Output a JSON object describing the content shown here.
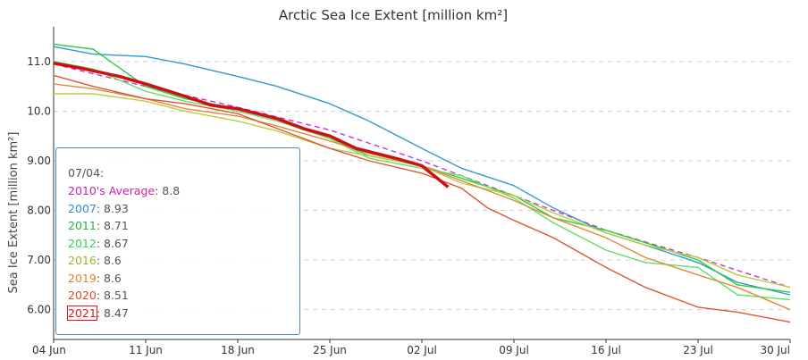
{
  "chart_data": {
    "type": "line",
    "title": "Arctic Sea Ice Extent [million km²]",
    "ylabel": "Sea Ice Extent [million km²]",
    "xlabel": "",
    "x_axis": {
      "start": "04 Jun",
      "end": "30 Jul",
      "tick_labels": [
        "04 Jun",
        "11 Jun",
        "18 Jun",
        "25 Jun",
        "02 Jul",
        "09 Jul",
        "16 Jul",
        "23 Jul",
        "30 Jul"
      ]
    },
    "ylim": [
      5.4,
      11.7
    ],
    "y_ticks": [
      "6.00",
      "7.00",
      "8.00",
      "9.00",
      "10.0",
      "11.0"
    ],
    "grid": true,
    "series": [
      {
        "name": "2010's Average",
        "color": "#cc33cc",
        "dashed": true,
        "x": [
          "04 Jun",
          "11 Jun",
          "18 Jun",
          "25 Jun",
          "02 Jul",
          "09 Jul",
          "16 Jul",
          "23 Jul",
          "30 Jul"
        ],
        "y": [
          10.95,
          10.5,
          10.08,
          9.62,
          9.0,
          8.3,
          7.6,
          7.05,
          6.45
        ]
      },
      {
        "name": "2007",
        "color": "#3399cc",
        "x": [
          "04 Jun",
          "07 Jun",
          "11 Jun",
          "14 Jun",
          "18 Jun",
          "21 Jun",
          "25 Jun",
          "28 Jun",
          "02 Jul",
          "05 Jul",
          "09 Jul",
          "12 Jul",
          "16 Jul",
          "19 Jul",
          "23 Jul",
          "26 Jul",
          "30 Jul"
        ],
        "y": [
          11.3,
          11.15,
          11.1,
          10.95,
          10.7,
          10.5,
          10.15,
          9.8,
          9.25,
          8.85,
          8.5,
          8.05,
          7.55,
          7.3,
          6.95,
          6.55,
          6.3
        ]
      },
      {
        "name": "2011",
        "color": "#2ecc40",
        "x": [
          "04 Jun",
          "07 Jun",
          "11 Jun",
          "14 Jun",
          "18 Jun",
          "21 Jun",
          "25 Jun",
          "28 Jun",
          "02 Jul",
          "05 Jul",
          "09 Jul",
          "12 Jul",
          "16 Jul",
          "19 Jul",
          "23 Jul",
          "26 Jul",
          "30 Jul"
        ],
        "y": [
          11.35,
          11.25,
          10.5,
          10.25,
          10.05,
          9.85,
          9.45,
          9.1,
          8.9,
          8.65,
          8.3,
          7.85,
          7.6,
          7.35,
          7.0,
          6.5,
          6.35
        ]
      },
      {
        "name": "2012",
        "color": "#66dd66",
        "x": [
          "04 Jun",
          "07 Jun",
          "11 Jun",
          "14 Jun",
          "18 Jun",
          "21 Jun",
          "25 Jun",
          "28 Jun",
          "02 Jul",
          "05 Jul",
          "09 Jul",
          "12 Jul",
          "16 Jul",
          "19 Jul",
          "23 Jul",
          "26 Jul",
          "30 Jul"
        ],
        "y": [
          11.0,
          10.85,
          10.4,
          10.2,
          10.0,
          9.8,
          9.45,
          9.05,
          8.85,
          8.7,
          8.25,
          7.75,
          7.2,
          6.95,
          6.85,
          6.3,
          6.2
        ]
      },
      {
        "name": "2016",
        "color": "#bbcc44",
        "x": [
          "04 Jun",
          "07 Jun",
          "11 Jun",
          "14 Jun",
          "18 Jun",
          "21 Jun",
          "25 Jun",
          "28 Jun",
          "02 Jul",
          "05 Jul",
          "09 Jul",
          "12 Jul",
          "16 Jul",
          "19 Jul",
          "23 Jul",
          "26 Jul",
          "30 Jul"
        ],
        "y": [
          10.35,
          10.35,
          10.2,
          10.0,
          9.8,
          9.6,
          9.25,
          9.1,
          8.9,
          8.55,
          8.3,
          7.95,
          7.55,
          7.3,
          7.05,
          6.7,
          6.45
        ]
      },
      {
        "name": "2019",
        "color": "#e08a3c",
        "x": [
          "04 Jun",
          "07 Jun",
          "11 Jun",
          "14 Jun",
          "18 Jun",
          "21 Jun",
          "25 Jun",
          "28 Jun",
          "02 Jul",
          "05 Jul",
          "09 Jul",
          "12 Jul",
          "16 Jul",
          "19 Jul",
          "23 Jul",
          "26 Jul",
          "30 Jul"
        ],
        "y": [
          10.55,
          10.45,
          10.25,
          10.05,
          9.9,
          9.7,
          9.4,
          9.15,
          8.9,
          8.6,
          8.2,
          7.85,
          7.45,
          7.05,
          6.7,
          6.45,
          6.0
        ]
      },
      {
        "name": "2020",
        "color": "#dd5533",
        "x": [
          "04 Jun",
          "07 Jun",
          "11 Jun",
          "14 Jun",
          "18 Jun",
          "21 Jun",
          "25 Jun",
          "28 Jun",
          "02 Jul",
          "05 Jul",
          "07 Jul",
          "09 Jul",
          "12 Jul",
          "16 Jul",
          "19 Jul",
          "23 Jul",
          "26 Jul",
          "30 Jul"
        ],
        "y": [
          10.72,
          10.5,
          10.25,
          10.15,
          9.95,
          9.65,
          9.25,
          9.0,
          8.75,
          8.45,
          8.05,
          7.8,
          7.45,
          6.85,
          6.45,
          6.05,
          5.95,
          5.75
        ]
      },
      {
        "name": "2021",
        "color": "#cc1111",
        "bold": true,
        "x": [
          "04 Jun",
          "06 Jun",
          "09 Jun",
          "11 Jun",
          "14 Jun",
          "16 Jun",
          "18 Jun",
          "21 Jun",
          "23 Jun",
          "25 Jun",
          "27 Jun",
          "30 Jun",
          "02 Jul",
          "04 Jul"
        ],
        "y": [
          10.97,
          10.87,
          10.7,
          10.55,
          10.3,
          10.12,
          10.05,
          9.85,
          9.65,
          9.5,
          9.25,
          9.05,
          8.9,
          8.47
        ]
      }
    ],
    "tooltip": {
      "date": "07/04:",
      "rows": [
        {
          "name": "2010's Average",
          "value": "8.8",
          "color": "#cc1fa8"
        },
        {
          "name": "2007",
          "value": "8.93",
          "color": "#2b8fd1"
        },
        {
          "name": "2011",
          "value": "8.71",
          "color": "#22b83a"
        },
        {
          "name": "2012",
          "value": "8.67",
          "color": "#33cc55"
        },
        {
          "name": "2016",
          "value": "8.6",
          "color": "#99b82a"
        },
        {
          "name": "2019",
          "value": "8.6",
          "color": "#d9822b"
        },
        {
          "name": "2020",
          "value": "8.51",
          "color": "#d84a2a"
        },
        {
          "name": "2021",
          "value": "8.47",
          "color": "#d81c1c",
          "highlight": true
        }
      ]
    }
  }
}
